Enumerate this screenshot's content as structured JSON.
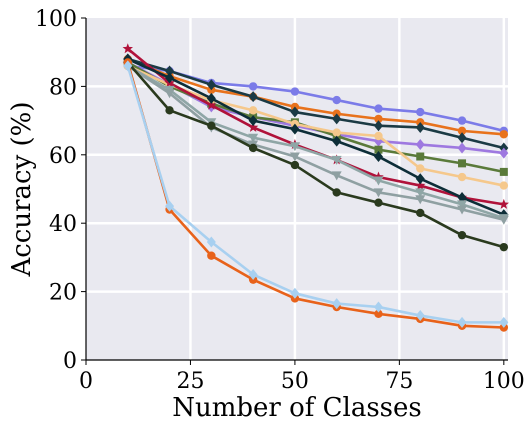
{
  "chart_data": {
    "type": "line",
    "title": "",
    "xlabel": "Number of Classes",
    "ylabel": "Accuracy (%)",
    "xlim": [
      0,
      101
    ],
    "ylim": [
      0,
      100
    ],
    "xticks": [
      0,
      25,
      50,
      75,
      100
    ],
    "yticks": [
      0,
      20,
      40,
      60,
      80,
      100
    ],
    "tick_labels_x": [
      "0",
      "25",
      "50",
      "75",
      "100"
    ],
    "tick_labels_y": [
      "0",
      "20",
      "40",
      "60",
      "80",
      "100"
    ],
    "grid": true,
    "background": "#e9e9f0",
    "legend": "none",
    "x": [
      10,
      20,
      30,
      40,
      50,
      60,
      70,
      80,
      90,
      100
    ],
    "series": [
      {
        "color": "#7b7be8",
        "marker": "circle",
        "values": [
          86.0,
          84.5,
          81.0,
          80.0,
          78.5,
          76.0,
          73.5,
          72.5,
          70.0,
          67.0
        ]
      },
      {
        "color": "#e8721c",
        "marker": "circle",
        "values": [
          88.0,
          83.0,
          79.0,
          77.0,
          74.0,
          72.0,
          70.5,
          69.5,
          67.0,
          66.0
        ]
      },
      {
        "color": "#1b3a44",
        "marker": "diamond",
        "values": [
          88.0,
          84.5,
          80.5,
          77.0,
          72.5,
          70.5,
          68.5,
          68.0,
          65.0,
          62.0
        ]
      },
      {
        "color": "#9e78e0",
        "marker": "diamond",
        "values": [
          87.0,
          80.5,
          74.0,
          71.0,
          68.5,
          66.0,
          64.0,
          63.0,
          62.0,
          60.5
        ]
      },
      {
        "color": "#5a7a3a",
        "marker": "square",
        "values": [
          87.0,
          80.0,
          75.0,
          71.0,
          69.5,
          65.5,
          61.5,
          59.5,
          57.5,
          55.0
        ]
      },
      {
        "color": "#f5c88c",
        "marker": "circle",
        "values": [
          86.0,
          80.5,
          76.0,
          73.0,
          69.0,
          66.5,
          65.5,
          56.0,
          53.5,
          51.0
        ]
      },
      {
        "color": "#b0123a",
        "marker": "star",
        "values": [
          91.0,
          81.0,
          74.5,
          68.0,
          63.0,
          58.5,
          53.5,
          51.0,
          47.5,
          45.5
        ]
      },
      {
        "color": "#0d2e38",
        "marker": "diamond",
        "values": [
          88.0,
          82.5,
          76.5,
          70.0,
          67.5,
          64.0,
          59.5,
          53.0,
          47.5,
          42.5
        ]
      },
      {
        "color": "#8fa6a6",
        "marker": "triangle",
        "values": [
          86.0,
          79.0,
          69.5,
          65.0,
          62.5,
          58.5,
          52.5,
          49.0,
          45.5,
          41.5
        ]
      },
      {
        "color": "#8fa0a2",
        "marker": "triangle",
        "values": [
          86.0,
          78.0,
          68.0,
          63.0,
          59.5,
          54.0,
          49.0,
          47.0,
          44.0,
          41.0
        ]
      },
      {
        "color": "#2a3a1e",
        "marker": "circle",
        "values": [
          87.0,
          73.0,
          68.5,
          62.0,
          57.0,
          49.0,
          46.0,
          43.0,
          36.5,
          33.0
        ]
      },
      {
        "color": "#e8621a",
        "marker": "circle",
        "values": [
          87.0,
          44.0,
          30.5,
          23.5,
          18.0,
          15.5,
          13.5,
          12.0,
          10.0,
          9.5
        ]
      },
      {
        "color": "#a8d0f0",
        "marker": "diamond",
        "values": [
          86.0,
          45.0,
          34.5,
          25.0,
          19.5,
          16.5,
          15.5,
          13.0,
          11.0,
          11.0
        ]
      }
    ]
  }
}
